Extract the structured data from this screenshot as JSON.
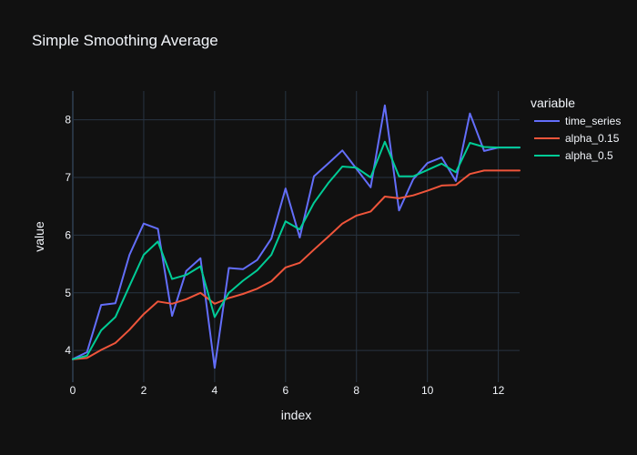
{
  "chart_data": {
    "type": "line",
    "title": "Simple Smoothing Average",
    "xlabel": "index",
    "ylabel": "value",
    "xlim": [
      0,
      12.6
    ],
    "ylim": [
      3.45,
      8.5
    ],
    "x_ticks": [
      0,
      2,
      4,
      6,
      8,
      10,
      12
    ],
    "y_ticks": [
      4,
      5,
      6,
      7,
      8
    ],
    "grid": true,
    "legend_title": "variable",
    "legend_position": "right",
    "x": [
      0,
      0.4,
      0.8,
      1.2,
      1.6,
      2.0,
      2.4,
      2.8,
      3.2,
      3.6,
      4.0,
      4.4,
      4.8,
      5.2,
      5.6,
      6.0,
      6.4,
      6.8,
      7.2,
      7.6,
      8.0,
      8.4,
      8.8,
      9.2,
      9.6,
      10.0,
      10.4,
      10.8,
      11.2,
      11.6,
      12.0,
      12.6
    ],
    "series": [
      {
        "name": "time_series",
        "color": "#636efa",
        "values": [
          3.85,
          3.97,
          4.79,
          4.82,
          5.66,
          6.2,
          6.11,
          4.6,
          5.38,
          5.6,
          3.7,
          5.43,
          5.41,
          5.57,
          5.94,
          6.81,
          5.96,
          7.02,
          7.24,
          7.47,
          7.15,
          6.83,
          8.25,
          6.43,
          6.97,
          7.25,
          7.35,
          6.94,
          8.11,
          7.46,
          7.52,
          7.52
        ]
      },
      {
        "name": "alpha_0.15",
        "color": "#ef553b",
        "values": [
          3.85,
          3.87,
          4.01,
          4.13,
          4.36,
          4.63,
          4.85,
          4.81,
          4.89,
          5.0,
          4.81,
          4.91,
          4.98,
          5.07,
          5.2,
          5.44,
          5.52,
          5.75,
          5.97,
          6.2,
          6.34,
          6.41,
          6.67,
          6.64,
          6.69,
          6.77,
          6.86,
          6.87,
          7.06,
          7.12,
          7.12,
          7.12
        ]
      },
      {
        "name": "alpha_0.5",
        "color": "#00cc96",
        "values": [
          3.85,
          3.91,
          4.35,
          4.58,
          5.12,
          5.66,
          5.89,
          5.24,
          5.31,
          5.46,
          4.58,
          5.0,
          5.21,
          5.39,
          5.66,
          6.24,
          6.1,
          6.56,
          6.9,
          7.19,
          7.17,
          7.0,
          7.62,
          7.02,
          7.02,
          7.13,
          7.24,
          7.09,
          7.6,
          7.53,
          7.52,
          7.52
        ]
      }
    ]
  }
}
